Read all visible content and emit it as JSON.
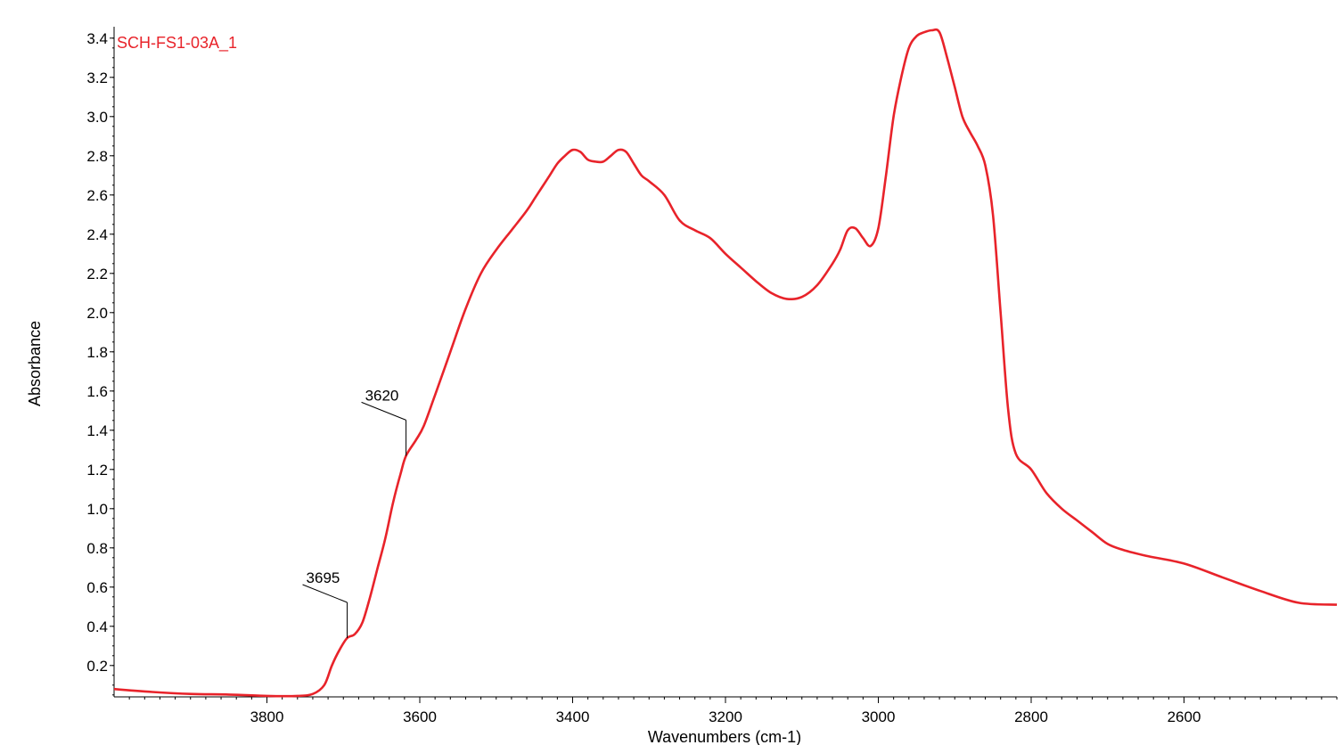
{
  "chart_data": {
    "type": "line",
    "title": "",
    "xlabel": "Wavenumbers (cm-1)",
    "ylabel": "Absorbance",
    "xlim": [
      4000,
      2400
    ],
    "ylim": [
      0.04,
      3.44
    ],
    "x_reversed": true,
    "x_ticks": [
      3800,
      3600,
      3400,
      3200,
      3000,
      2800,
      2600
    ],
    "x_tick_labels": [
      "3800",
      "3600",
      "3400",
      "3200",
      "3000",
      "2800",
      "2600"
    ],
    "y_ticks": [
      0.2,
      0.4,
      0.6,
      0.8,
      1.0,
      1.2,
      1.4,
      1.6,
      1.8,
      2.0,
      2.2,
      2.4,
      2.6,
      2.8,
      3.0,
      3.2,
      3.4
    ],
    "y_tick_labels": [
      "0.2",
      "0.4",
      "0.6",
      "0.8",
      "1.0",
      "1.2",
      "1.4",
      "1.6",
      "1.8",
      "2.0",
      "2.2",
      "2.4",
      "2.6",
      "2.8",
      "3.0",
      "3.2",
      "3.4"
    ],
    "grid": false,
    "series": [
      {
        "name": "SCH-FS1-03A_1",
        "color": "#e8232a",
        "points": [
          [
            4000,
            0.08
          ],
          [
            3950,
            0.065
          ],
          [
            3900,
            0.055
          ],
          [
            3850,
            0.052
          ],
          [
            3800,
            0.045
          ],
          [
            3760,
            0.045
          ],
          [
            3740,
            0.055
          ],
          [
            3725,
            0.1
          ],
          [
            3715,
            0.2
          ],
          [
            3705,
            0.28
          ],
          [
            3695,
            0.34
          ],
          [
            3685,
            0.36
          ],
          [
            3675,
            0.42
          ],
          [
            3665,
            0.55
          ],
          [
            3655,
            0.7
          ],
          [
            3645,
            0.85
          ],
          [
            3635,
            1.03
          ],
          [
            3625,
            1.18
          ],
          [
            3618,
            1.27
          ],
          [
            3605,
            1.35
          ],
          [
            3595,
            1.42
          ],
          [
            3580,
            1.58
          ],
          [
            3560,
            1.8
          ],
          [
            3540,
            2.02
          ],
          [
            3520,
            2.2
          ],
          [
            3500,
            2.32
          ],
          [
            3480,
            2.42
          ],
          [
            3460,
            2.52
          ],
          [
            3450,
            2.58
          ],
          [
            3440,
            2.64
          ],
          [
            3430,
            2.7
          ],
          [
            3420,
            2.76
          ],
          [
            3410,
            2.8
          ],
          [
            3400,
            2.83
          ],
          [
            3390,
            2.82
          ],
          [
            3380,
            2.78
          ],
          [
            3370,
            2.77
          ],
          [
            3360,
            2.77
          ],
          [
            3350,
            2.8
          ],
          [
            3340,
            2.83
          ],
          [
            3330,
            2.82
          ],
          [
            3320,
            2.76
          ],
          [
            3310,
            2.7
          ],
          [
            3300,
            2.67
          ],
          [
            3280,
            2.6
          ],
          [
            3260,
            2.47
          ],
          [
            3240,
            2.42
          ],
          [
            3220,
            2.38
          ],
          [
            3200,
            2.3
          ],
          [
            3180,
            2.23
          ],
          [
            3160,
            2.16
          ],
          [
            3140,
            2.1
          ],
          [
            3120,
            2.07
          ],
          [
            3100,
            2.08
          ],
          [
            3080,
            2.14
          ],
          [
            3060,
            2.25
          ],
          [
            3050,
            2.32
          ],
          [
            3040,
            2.42
          ],
          [
            3030,
            2.43
          ],
          [
            3020,
            2.38
          ],
          [
            3010,
            2.34
          ],
          [
            3000,
            2.43
          ],
          [
            2990,
            2.7
          ],
          [
            2980,
            3.0
          ],
          [
            2970,
            3.2
          ],
          [
            2960,
            3.35
          ],
          [
            2950,
            3.41
          ],
          [
            2940,
            3.43
          ],
          [
            2930,
            3.44
          ],
          [
            2920,
            3.43
          ],
          [
            2910,
            3.3
          ],
          [
            2900,
            3.15
          ],
          [
            2890,
            3.0
          ],
          [
            2880,
            2.92
          ],
          [
            2870,
            2.85
          ],
          [
            2860,
            2.75
          ],
          [
            2850,
            2.5
          ],
          [
            2840,
            2.0
          ],
          [
            2830,
            1.5
          ],
          [
            2820,
            1.28
          ],
          [
            2800,
            1.2
          ],
          [
            2780,
            1.08
          ],
          [
            2760,
            1.0
          ],
          [
            2740,
            0.94
          ],
          [
            2720,
            0.88
          ],
          [
            2700,
            0.82
          ],
          [
            2680,
            0.79
          ],
          [
            2650,
            0.76
          ],
          [
            2600,
            0.72
          ],
          [
            2550,
            0.65
          ],
          [
            2500,
            0.58
          ],
          [
            2450,
            0.52
          ],
          [
            2400,
            0.51
          ]
        ]
      }
    ],
    "annotations": [
      {
        "text": "3695",
        "x": 3695,
        "y": 0.34
      },
      {
        "text": "3620",
        "x": 3618,
        "y": 1.27
      }
    ]
  }
}
